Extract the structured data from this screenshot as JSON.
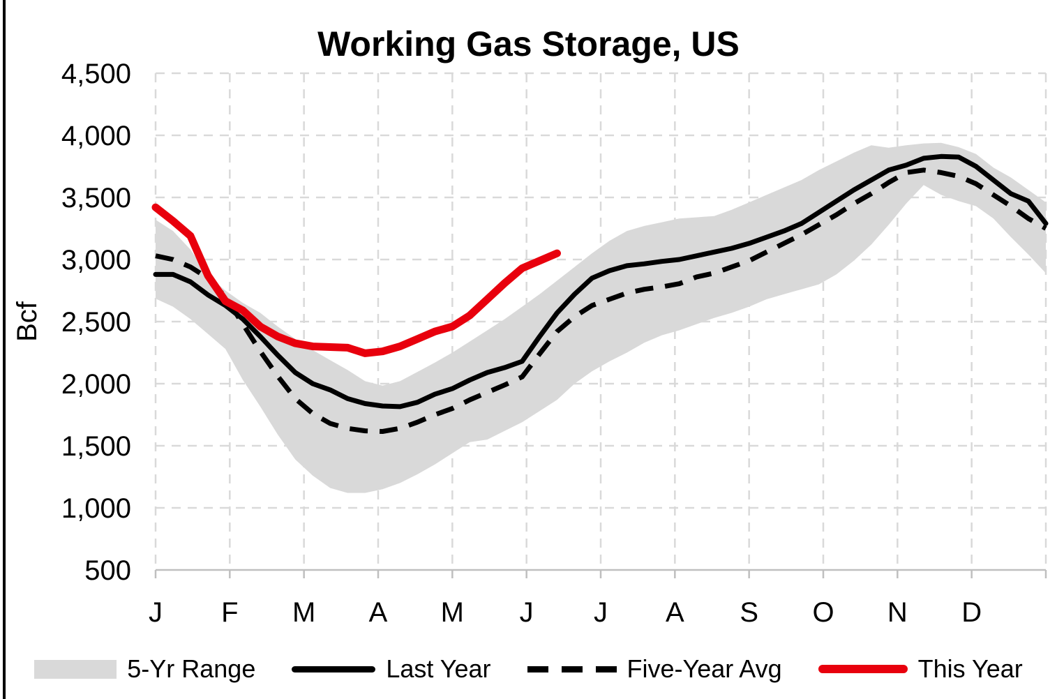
{
  "title": "Working Gas Storage, US",
  "y_axis": {
    "label": "Bcf",
    "tick_labels": [
      "4,500",
      "4,000",
      "3,500",
      "3,000",
      "2,500",
      "2,000",
      "1,500",
      "1,000",
      "500"
    ],
    "tick_values": [
      4500,
      4000,
      3500,
      3000,
      2500,
      2000,
      1500,
      1000,
      500
    ]
  },
  "x_axis": {
    "month_labels": [
      "J",
      "F",
      "M",
      "A",
      "M",
      "J",
      "J",
      "A",
      "S",
      "O",
      "N",
      "D"
    ]
  },
  "legend": {
    "items": [
      {
        "label": "5-Yr Range",
        "swatch": "gray-band"
      },
      {
        "label": "Last Year",
        "swatch": "black-solid-line"
      },
      {
        "label": "Five-Year Avg",
        "swatch": "black-dashed-line"
      },
      {
        "label": "This Year",
        "swatch": "red-solid-line"
      }
    ]
  },
  "colors": {
    "band": "#d9d9d9",
    "gridline": "#d9d9d9",
    "axis": "#bfbfbf",
    "last_year": "#000000",
    "five_year_avg": "#000000",
    "this_year": "#e8000d",
    "text": "#000000"
  },
  "chart_data": {
    "type": "line",
    "title": "Working Gas Storage, US",
    "ylabel": "Bcf",
    "ylim": [
      500,
      4500
    ],
    "y_tick_step": 500,
    "x_categories": [
      "J",
      "F",
      "M",
      "A",
      "M",
      "J",
      "J",
      "A",
      "S",
      "O",
      "N",
      "D"
    ],
    "x_resolution": "weekly, 52 points Jan-Dec",
    "grid": "dashed gray, both axes",
    "legend_position": "bottom",
    "band": {
      "name": "5-Yr Range",
      "color": "#d9d9d9",
      "max": [
        3320,
        3230,
        3080,
        2870,
        2750,
        2650,
        2570,
        2460,
        2360,
        2270,
        2190,
        2110,
        2020,
        1985,
        2020,
        2095,
        2170,
        2250,
        2340,
        2430,
        2520,
        2620,
        2720,
        2830,
        2940,
        3050,
        3150,
        3230,
        3270,
        3300,
        3330,
        3340,
        3350,
        3400,
        3460,
        3520,
        3580,
        3640,
        3720,
        3790,
        3860,
        3920,
        3900,
        3920,
        3935,
        3940,
        3905,
        3850,
        3740,
        3660,
        3560,
        3460
      ],
      "min": [
        2685,
        2620,
        2520,
        2400,
        2280,
        2030,
        1815,
        1590,
        1390,
        1260,
        1160,
        1120,
        1120,
        1150,
        1200,
        1270,
        1350,
        1440,
        1530,
        1550,
        1620,
        1690,
        1780,
        1870,
        2000,
        2100,
        2180,
        2250,
        2330,
        2390,
        2430,
        2480,
        2530,
        2570,
        2620,
        2680,
        2720,
        2760,
        2800,
        2880,
        2990,
        3120,
        3280,
        3450,
        3600,
        3520,
        3470,
        3430,
        3330,
        3180,
        3040,
        2890
      ]
    },
    "series": [
      {
        "name": "Five-Year Avg",
        "style": "dashed",
        "color": "#000000",
        "stroke_width": 7,
        "values": [
          3030,
          3000,
          2940,
          2850,
          2700,
          2480,
          2260,
          2060,
          1880,
          1760,
          1680,
          1640,
          1620,
          1615,
          1640,
          1690,
          1750,
          1800,
          1870,
          1930,
          1990,
          2055,
          2240,
          2420,
          2540,
          2630,
          2680,
          2730,
          2760,
          2780,
          2805,
          2860,
          2890,
          2940,
          2990,
          3060,
          3130,
          3200,
          3280,
          3360,
          3450,
          3530,
          3620,
          3700,
          3720,
          3700,
          3670,
          3610,
          3520,
          3430,
          3330,
          3250
        ]
      },
      {
        "name": "Last Year",
        "style": "solid",
        "color": "#000000",
        "stroke_width": 7,
        "values": [
          2880,
          2880,
          2820,
          2715,
          2630,
          2520,
          2380,
          2230,
          2090,
          2000,
          1950,
          1880,
          1840,
          1820,
          1815,
          1850,
          1915,
          1960,
          2030,
          2090,
          2130,
          2180,
          2380,
          2570,
          2720,
          2850,
          2910,
          2950,
          2965,
          2985,
          3000,
          3030,
          3060,
          3090,
          3130,
          3180,
          3230,
          3290,
          3380,
          3470,
          3560,
          3640,
          3720,
          3760,
          3815,
          3830,
          3825,
          3750,
          3640,
          3530,
          3470,
          3290
        ]
      },
      {
        "name": "This Year",
        "style": "solid",
        "color": "#e8000d",
        "stroke_width": 11,
        "values": [
          3420,
          3310,
          3190,
          2870,
          2665,
          2590,
          2460,
          2380,
          2325,
          2300,
          2295,
          2290,
          2245,
          2260,
          2300,
          2360,
          2420,
          2460,
          2550,
          2680,
          2810,
          2930,
          2990,
          3050
        ]
      }
    ]
  }
}
